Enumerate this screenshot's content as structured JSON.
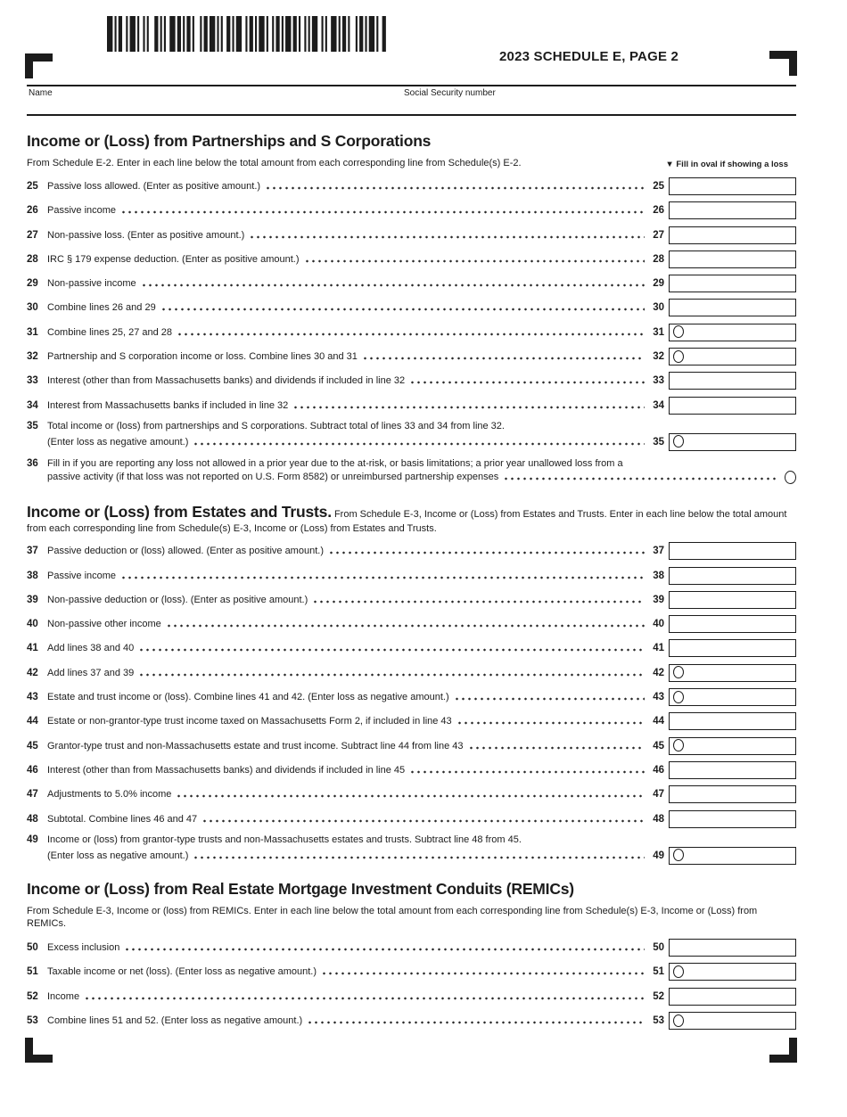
{
  "header": {
    "title": "2023 SCHEDULE E, PAGE 2",
    "name_label": "Name",
    "ssn_label": "Social Security number"
  },
  "sections": [
    {
      "id": "partnerships-s-corporations",
      "title": "Income or (Loss) from Partnerships and S Corporations",
      "title_inline": false,
      "intro": "From Schedule E-2. Enter in each line below the total amount from each corresponding line from Schedule(s) E-2.",
      "oval_hint": "▼ Fill in oval if showing a loss",
      "lines": [
        {
          "num": "25",
          "text": "Passive loss allowed. (Enter as positive amount.)",
          "oval": false
        },
        {
          "num": "26",
          "text": "Passive income",
          "oval": false
        },
        {
          "num": "27",
          "text": "Non-passive loss. (Enter as positive amount.)",
          "oval": false
        },
        {
          "num": "28",
          "text": "IRC § 179 expense deduction. (Enter as positive amount.)",
          "oval": false
        },
        {
          "num": "29",
          "text": "Non-passive income",
          "oval": false
        },
        {
          "num": "30",
          "text": "Combine lines 26 and 29",
          "oval": false
        },
        {
          "num": "31",
          "text": "Combine lines 25, 27 and 28",
          "oval": true
        },
        {
          "num": "32",
          "text": "Partnership and S corporation income or loss. Combine lines 30 and 31",
          "oval": true
        },
        {
          "num": "33",
          "text": "Interest (other than from Massachusetts banks) and dividends if included in line 32",
          "oval": false
        },
        {
          "num": "34",
          "text": "Interest from Massachusetts banks if included in line 32",
          "oval": false
        },
        {
          "num": "35",
          "text": "Total income or (loss) from partnerships and S corporations. Subtract total of lines 33 and 34 from line 32.",
          "text2": "(Enter loss as negative amount.)",
          "oval": true
        },
        {
          "num": "36",
          "type": "oval_only",
          "text": "Fill in if you are reporting any loss not allowed in a prior year due to the at-risk, or basis limitations; a prior year unallowed loss from a",
          "text2": "passive activity (if that loss was not reported on U.S. Form 8582) or unreimbursed partnership expenses"
        }
      ]
    },
    {
      "id": "estates-and-trusts",
      "title": "Income or (Loss) from Estates and Trusts.",
      "title_inline": true,
      "intro": "From Schedule E-3, Income or (Loss) from Estates and Trusts. Enter in each line below the total amount from each corresponding line from Schedule(s) E-3, Income or (Loss) from Estates and Trusts.",
      "lines": [
        {
          "num": "37",
          "text": "Passive deduction or (loss) allowed. (Enter as positive amount.)",
          "oval": false
        },
        {
          "num": "38",
          "text": "Passive income",
          "oval": false
        },
        {
          "num": "39",
          "text": "Non-passive deduction or (loss). (Enter as positive amount.)",
          "oval": false
        },
        {
          "num": "40",
          "text": "Non-passive other income",
          "oval": false
        },
        {
          "num": "41",
          "text": "Add lines 38 and 40",
          "oval": false
        },
        {
          "num": "42",
          "text": "Add lines 37 and 39",
          "oval": true
        },
        {
          "num": "43",
          "text": "Estate and trust income or (loss). Combine lines 41 and 42. (Enter loss as negative amount.)",
          "oval": true
        },
        {
          "num": "44",
          "text": "Estate or non-grantor-type trust income taxed on Massachusetts Form 2, if included in line 43",
          "oval": false
        },
        {
          "num": "45",
          "text": "Grantor-type trust and non-Massachusetts estate and trust income. Subtract line 44 from line 43",
          "oval": true
        },
        {
          "num": "46",
          "text": "Interest (other than from Massachusetts banks) and dividends if included in line 45",
          "oval": false
        },
        {
          "num": "47",
          "text": "Adjustments to 5.0% income",
          "oval": false
        },
        {
          "num": "48",
          "text": "Subtotal. Combine lines 46 and 47",
          "oval": false
        },
        {
          "num": "49",
          "text": "Income or (loss) from grantor-type trusts and non-Massachusetts estates and trusts. Subtract line 48 from 45.",
          "text2": "(Enter loss as negative amount.)",
          "oval": true
        }
      ]
    },
    {
      "id": "remics",
      "title": "Income or (Loss) from Real Estate Mortgage Investment Conduits (REMICs)",
      "title_inline": false,
      "intro": "From Schedule E-3, Income or (loss) from REMICs. Enter in each line below the total amount from each corresponding line from Schedule(s) E-3, Income or (Loss) from REMICs.",
      "lines": [
        {
          "num": "50",
          "text": "Excess inclusion",
          "oval": false
        },
        {
          "num": "51",
          "text": "Taxable income or net (loss). (Enter loss as negative amount.)",
          "oval": true
        },
        {
          "num": "52",
          "text": "Income",
          "oval": false
        },
        {
          "num": "53",
          "text": "Combine lines 51 and 52. (Enter loss as negative amount.)",
          "oval": true
        }
      ]
    }
  ]
}
